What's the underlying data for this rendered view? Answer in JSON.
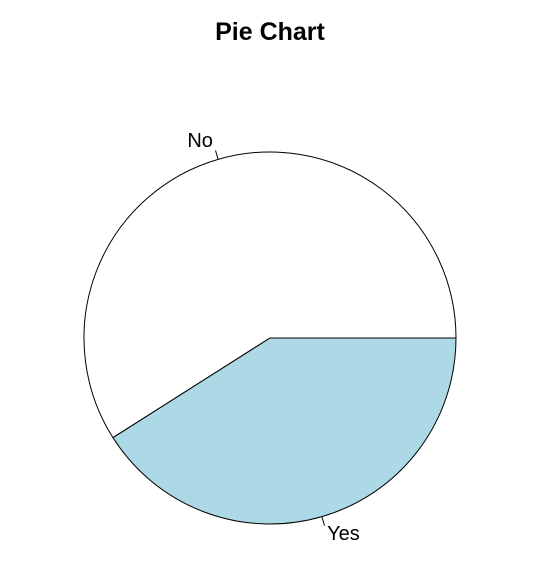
{
  "chart_data": {
    "type": "pie",
    "title": "Pie Chart",
    "categories": [
      "No",
      "Yes"
    ],
    "values": [
      59,
      41
    ],
    "colors": [
      "#ffffff",
      "#add8e6"
    ],
    "border_color": "#000000",
    "start_angle_deg": 0,
    "direction": "counterclockwise"
  }
}
